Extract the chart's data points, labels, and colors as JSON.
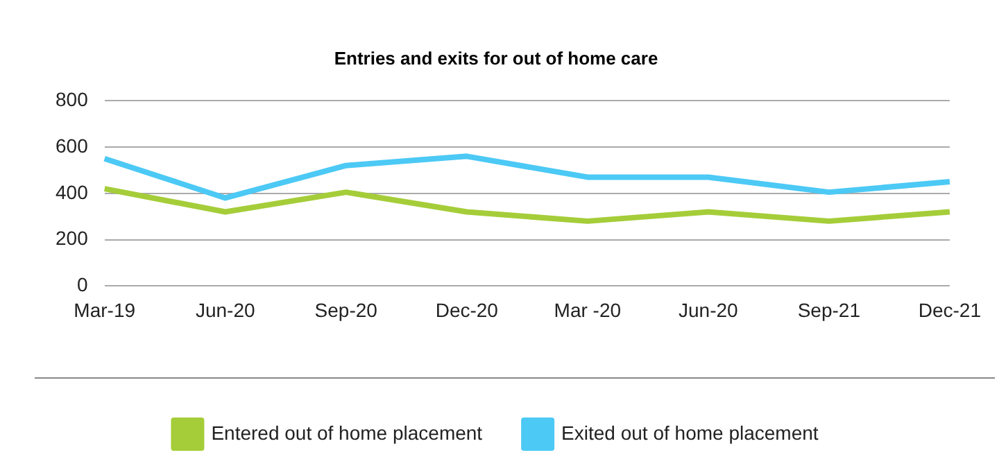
{
  "chart_data": {
    "type": "line",
    "title": "Entries and exits for out of home care",
    "categories": [
      "Mar-19",
      "Jun-20",
      "Sep-20",
      "Dec-20",
      "Mar -20",
      "Jun-20",
      "Sep-21",
      "Dec-21"
    ],
    "series": [
      {
        "name": "Entered out of home placement",
        "color": "#a5cd39",
        "values": [
          420,
          320,
          405,
          320,
          280,
          320,
          280,
          320
        ]
      },
      {
        "name": "Exited out of home placement",
        "color": "#4cc9f5",
        "values": [
          550,
          380,
          520,
          560,
          470,
          470,
          405,
          450
        ]
      }
    ],
    "ylim": [
      0,
      800
    ],
    "yticks": [
      0,
      200,
      400,
      600,
      800
    ],
    "grid": "y",
    "legend": "bottom",
    "marker": "none",
    "line_style": "solid"
  }
}
